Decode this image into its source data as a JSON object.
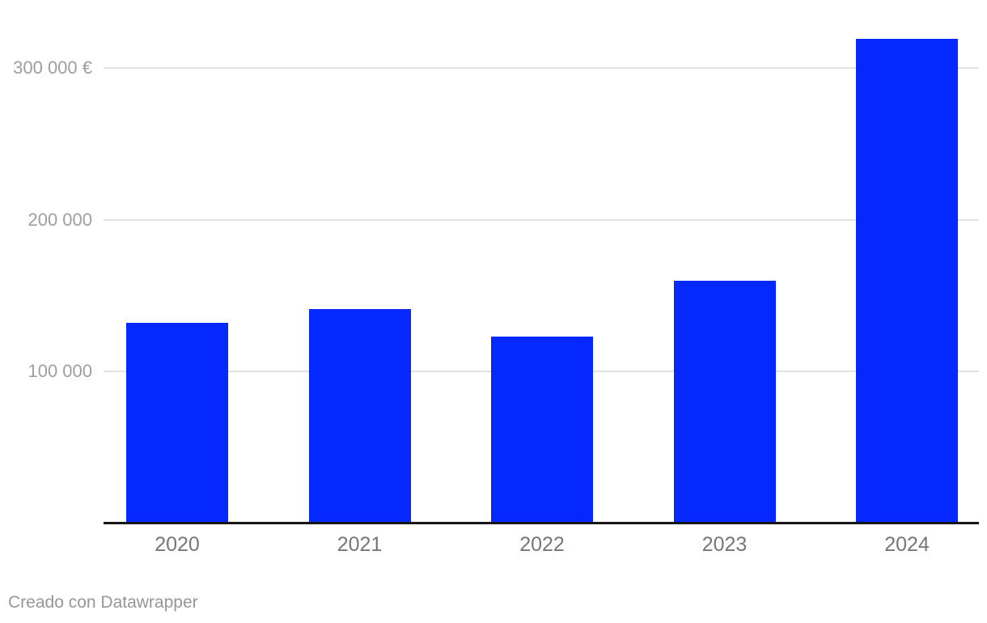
{
  "chart_data": {
    "type": "bar",
    "title": "",
    "categories": [
      "2020",
      "2021",
      "2022",
      "2023",
      "2024"
    ],
    "values": [
      132000,
      141000,
      123000,
      160000,
      319000
    ],
    "unit": "€",
    "y_ticks": [
      {
        "value": 100000,
        "label": "100 000"
      },
      {
        "value": 200000,
        "label": "200 000"
      },
      {
        "value": 300000,
        "label": "300 000 €"
      }
    ],
    "ylim": [
      0,
      320000
    ],
    "xlabel": "",
    "ylabel": "",
    "grid": "horizontal",
    "legend": "none",
    "bar_color": "#0529fc"
  },
  "colors": {
    "bar": "#0529fc",
    "gridline": "#e2e2e2",
    "axis_line": "#161616",
    "y_tick_label": "#9e9e9e",
    "x_tick_label": "#767676",
    "footer_text": "#969696",
    "background": "#ffffff"
  },
  "footer": {
    "credit": "Creado con Datawrapper"
  }
}
